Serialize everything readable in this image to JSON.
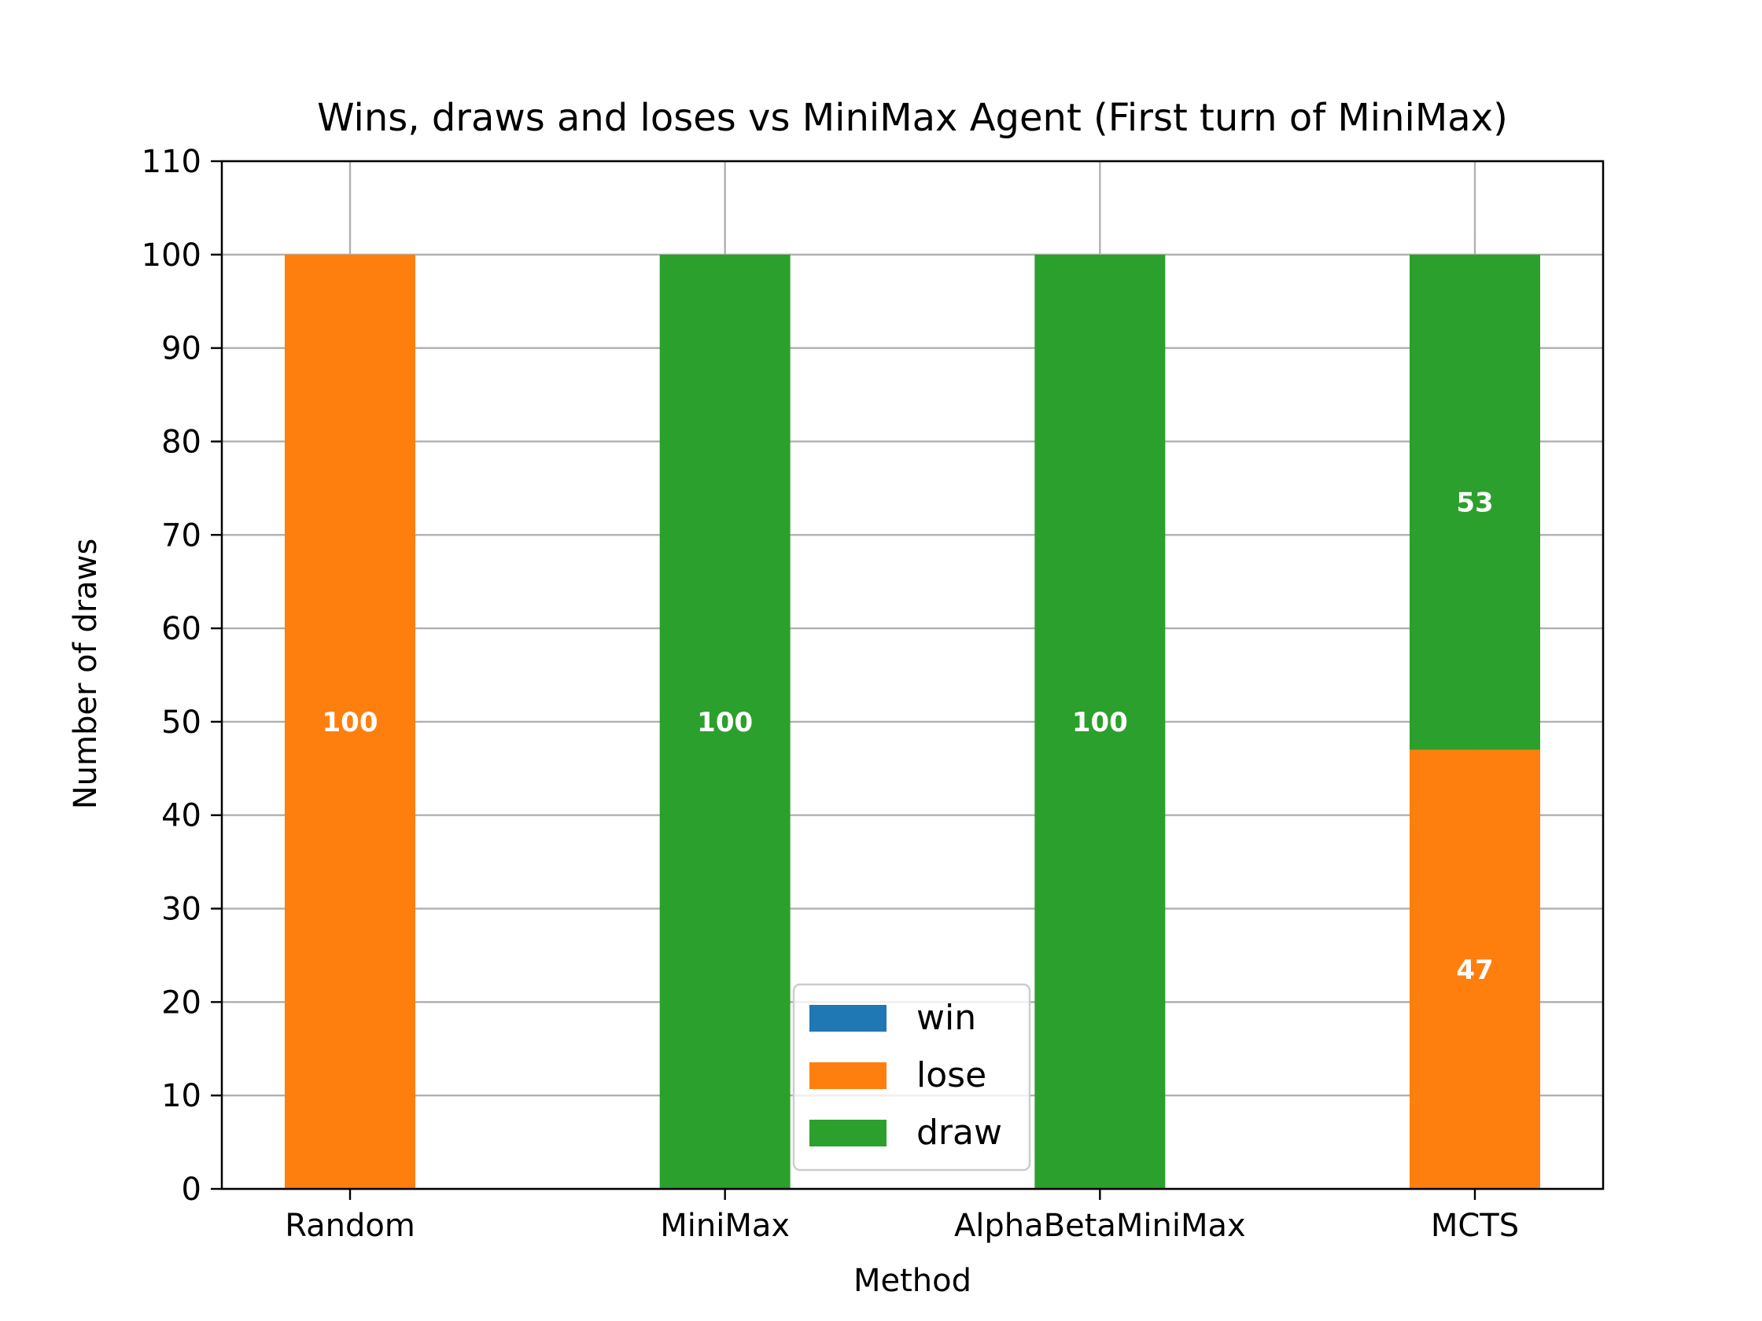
{
  "chart_data": {
    "type": "bar",
    "stacked": true,
    "title": "Wins, draws and loses vs MiniMax Agent (First turn of MiniMax)",
    "xlabel": "Method",
    "ylabel": "Number of draws",
    "ylim": [
      0,
      110
    ],
    "yticks": [
      0,
      10,
      20,
      30,
      40,
      50,
      60,
      70,
      80,
      90,
      100,
      110
    ],
    "grid": true,
    "legend_position": "lower-center",
    "categories": [
      "Random",
      "MiniMax",
      "AlphaBetaMiniMax",
      "MCTS"
    ],
    "series": [
      {
        "name": "win",
        "color": "#1f77b4",
        "values": [
          0,
          0,
          0,
          0
        ]
      },
      {
        "name": "lose",
        "color": "#ff7f0e",
        "values": [
          100,
          0,
          0,
          47
        ]
      },
      {
        "name": "draw",
        "color": "#2ca02c",
        "values": [
          0,
          100,
          100,
          53
        ]
      }
    ]
  }
}
